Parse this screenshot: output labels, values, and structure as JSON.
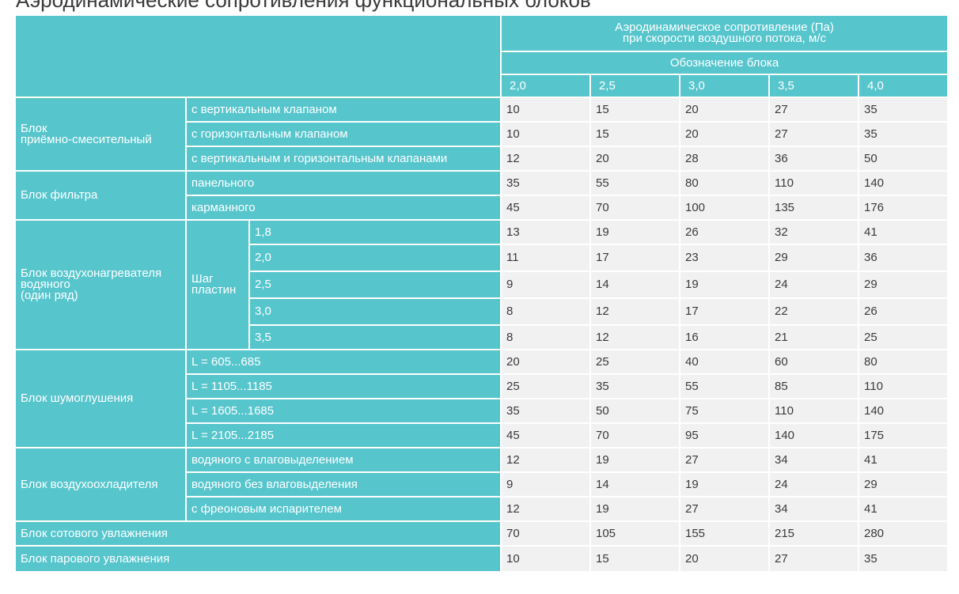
{
  "title": "Аэродинамические сопротивления функциональных блоков",
  "header": {
    "main": "Аэродинамическое сопротивление (Па)\nпри скорости воздушного потока, м/с",
    "sub": "Обозначение блока",
    "speeds": [
      "2,0",
      "2,5",
      "3,0",
      "3,5",
      "4,0"
    ]
  },
  "groups": [
    {
      "name": "Блок\nприёмно-смесительный",
      "rows": [
        {
          "label": "с вертикальным клапаном",
          "values": [
            "10",
            "15",
            "20",
            "27",
            "35"
          ]
        },
        {
          "label": "с горизонтальным клапаном",
          "values": [
            "10",
            "15",
            "20",
            "27",
            "35"
          ]
        },
        {
          "label": "с вертикальным и горизонтальным клапанами",
          "values": [
            "12",
            "20",
            "28",
            "36",
            "50"
          ]
        }
      ]
    },
    {
      "name": "Блок фильтра",
      "rows": [
        {
          "label": "панельного",
          "values": [
            "35",
            "55",
            "80",
            "110",
            "140"
          ]
        },
        {
          "label": "карманного",
          "values": [
            "45",
            "70",
            "100",
            "135",
            "176"
          ]
        }
      ]
    },
    {
      "name": "Блок воздухонагревателя\nводяного\n(один ряд)",
      "sublabel": "Шаг\nпластин",
      "rows": [
        {
          "label": "1,8",
          "values": [
            "13",
            "19",
            "26",
            "32",
            "41"
          ]
        },
        {
          "label": "2,0",
          "values": [
            "11",
            "17",
            "23",
            "29",
            "36"
          ]
        },
        {
          "label": "2,5",
          "values": [
            "9",
            "14",
            "19",
            "24",
            "29"
          ]
        },
        {
          "label": "3,0",
          "values": [
            "8",
            "12",
            "17",
            "22",
            "26"
          ]
        },
        {
          "label": "3,5",
          "values": [
            "8",
            "12",
            "16",
            "21",
            "25"
          ]
        }
      ]
    },
    {
      "name": "Блок шумоглушения",
      "rows": [
        {
          "label": "L = 605...685",
          "values": [
            "20",
            "25",
            "40",
            "60",
            "80"
          ]
        },
        {
          "label": "L = 1105...1185",
          "values": [
            "25",
            "35",
            "55",
            "85",
            "110"
          ]
        },
        {
          "label": "L = 1605...1685",
          "values": [
            "35",
            "50",
            "75",
            "110",
            "140"
          ]
        },
        {
          "label": "L = 2105...2185",
          "values": [
            "45",
            "70",
            "95",
            "140",
            "175"
          ]
        }
      ]
    },
    {
      "name": "Блок воздухоохладителя",
      "rows": [
        {
          "label": "водяного с влаговыделением",
          "values": [
            "12",
            "19",
            "27",
            "34",
            "41"
          ]
        },
        {
          "label": "водяного без влаговыделения",
          "values": [
            "9",
            "14",
            "19",
            "24",
            "29"
          ]
        },
        {
          "label": "с фреоновым испарителем",
          "values": [
            "12",
            "19",
            "27",
            "34",
            "41"
          ]
        }
      ]
    },
    {
      "name": "Блок сотового увлажнения",
      "rows": [
        {
          "values": [
            "70",
            "105",
            "155",
            "215",
            "280"
          ]
        }
      ]
    },
    {
      "name": "Блок парового увлажнения",
      "rows": [
        {
          "values": [
            "10",
            "15",
            "20",
            "27",
            "35"
          ]
        }
      ]
    }
  ]
}
